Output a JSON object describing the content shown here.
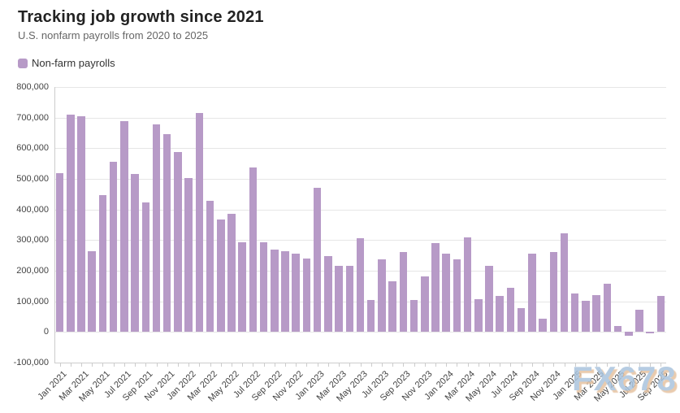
{
  "header": {
    "title": "Tracking job growth since 2021",
    "subtitle": "U.S. nonfarm payrolls from 2020 to 2025"
  },
  "legend": {
    "label": "Non-farm payrolls",
    "marker_color": "#b79ac7"
  },
  "watermark": {
    "text": "FX678",
    "fill_color": "#aac4dd",
    "shadow_color": "#e6c2a0"
  },
  "colors": {
    "bar": "#b79ac7",
    "grid": "#e6e6e6",
    "axis": "#cccccc",
    "title": "#222222",
    "subtitle": "#666666",
    "axis_text": "#444444"
  },
  "chart_data": {
    "type": "bar",
    "title": "Tracking job growth since 2021",
    "subtitle": "U.S. nonfarm payrolls from 2020 to 2025",
    "series_name": "Non-farm payrolls",
    "x": [
      "Jan 2021",
      "Feb 2021",
      "Mar 2021",
      "Apr 2021",
      "May 2021",
      "Jun 2021",
      "Jul 2021",
      "Aug 2021",
      "Sep 2021",
      "Oct 2021",
      "Nov 2021",
      "Dec 2021",
      "Jan 2022",
      "Feb 2022",
      "Mar 2022",
      "Apr 2022",
      "May 2022",
      "Jun 2022",
      "Jul 2022",
      "Aug 2022",
      "Sep 2022",
      "Oct 2022",
      "Nov 2022",
      "Dec 2022",
      "Jan 2023",
      "Feb 2023",
      "Mar 2023",
      "Apr 2023",
      "May 2023",
      "Jun 2023",
      "Jul 2023",
      "Aug 2023",
      "Sep 2023",
      "Oct 2023",
      "Nov 2023",
      "Dec 2023",
      "Jan 2024",
      "Feb 2024",
      "Mar 2024",
      "Apr 2024",
      "May 2024",
      "Jun 2024",
      "Jul 2024",
      "Aug 2024",
      "Sep 2024",
      "Oct 2024",
      "Nov 2024",
      "Dec 2024",
      "Jan 2025",
      "Feb 2025",
      "Mar 2025",
      "Apr 2025",
      "May 2025",
      "Jun 2025",
      "Jul 2025",
      "Aug 2025",
      "Sep 2025"
    ],
    "values": [
      520000,
      710000,
      704000,
      263000,
      447000,
      557000,
      689000,
      517000,
      424000,
      677000,
      647000,
      588000,
      504000,
      714000,
      428000,
      368000,
      386000,
      293000,
      537000,
      292000,
      269000,
      263000,
      256000,
      239000,
      472000,
      248000,
      217000,
      217000,
      306000,
      105000,
      236000,
      165000,
      262000,
      105000,
      182000,
      290000,
      256000,
      236000,
      310000,
      108000,
      216000,
      118000,
      144000,
      78000,
      255000,
      44000,
      261000,
      323000,
      125000,
      102000,
      120000,
      158000,
      19000,
      -13000,
      72000,
      -4000,
      119000
    ],
    "ylim": [
      -100000,
      800000
    ],
    "ytick_step": 100000,
    "ytick_labels": [
      "800,000",
      "700,000",
      "600,000",
      "500,000",
      "400,000",
      "300,000",
      "200,000",
      "100,000",
      "0",
      "-100,000"
    ],
    "x_label_every": 2,
    "grid": true,
    "legend_position": "top-left"
  }
}
